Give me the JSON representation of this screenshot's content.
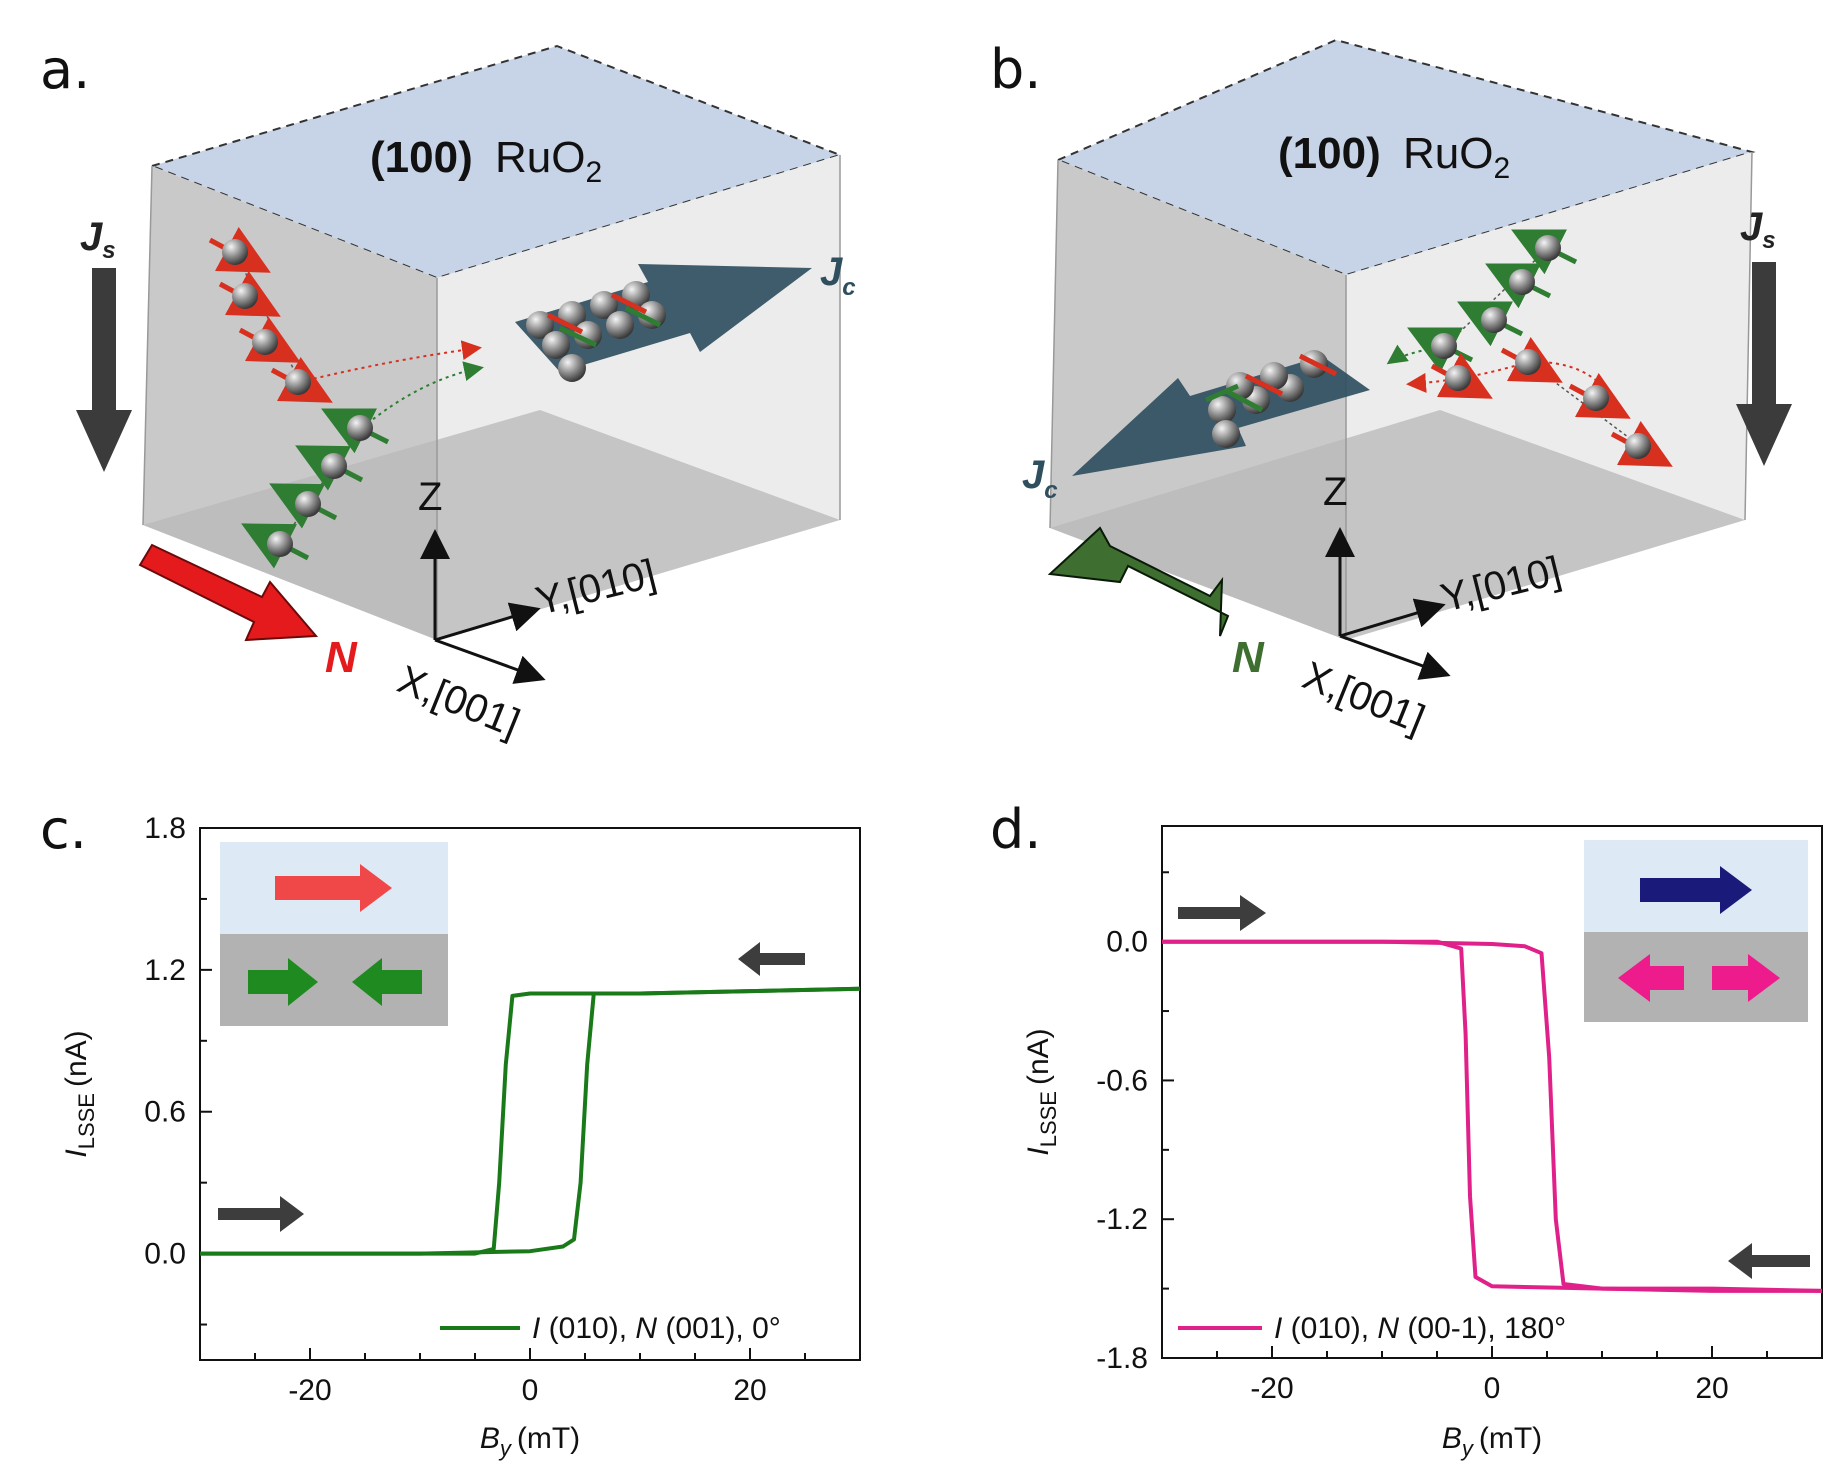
{
  "figure": {
    "panels": {
      "a": {
        "letter": "a.",
        "film_label_bold": "(100)",
        "film_label": "RuO",
        "film_sub": "2",
        "js": "J",
        "js_sub": "s",
        "jc": "J",
        "jc_sub": "c",
        "n_label": "N",
        "axis_z": "Z",
        "axis_y": "Y,[010]",
        "axis_x": "X,[001]",
        "colors": {
          "n_arrow": "#e41a1c",
          "jc_arrow": "#2f4f5f",
          "spin_red": "#d7301f",
          "spin_green": "#2e7d32"
        }
      },
      "b": {
        "letter": "b.",
        "film_label_bold": "(100)",
        "film_label": "RuO",
        "film_sub": "2",
        "js": "J",
        "js_sub": "s",
        "jc": "J",
        "jc_sub": "c",
        "n_label": "N",
        "axis_z": "Z",
        "axis_y": "Y,[010]",
        "axis_x": "X,[001]",
        "colors": {
          "n_arrow": "#3e6e30",
          "jc_arrow": "#2f4f5f",
          "spin_red": "#d7301f",
          "spin_green": "#2e7d32"
        }
      }
    }
  },
  "chart_data": [
    {
      "panel": "c.",
      "type": "line",
      "xlabel": "B",
      "xlabel_sub": "y",
      "xlabel_unit": "(mT)",
      "ylabel": "I",
      "ylabel_sub": "LSSE",
      "ylabel_unit": "(nA)",
      "xlim": [
        -30,
        30
      ],
      "ylim": [
        -0.45,
        1.8
      ],
      "xticks": [
        -20,
        0,
        20
      ],
      "xtick_labels": [
        "-20",
        "0",
        "20"
      ],
      "yticks": [
        0.0,
        0.6,
        1.2,
        1.8
      ],
      "ytick_labels": [
        "0.0",
        "0.6",
        "1.2",
        "1.8"
      ],
      "color": "#1a7a1a",
      "legend": "I (010), N (001), 0°",
      "legend_parts": [
        "I",
        " (010), ",
        "N",
        " (001), 0°"
      ],
      "series": [
        {
          "name": "sweep up",
          "x": [
            -30,
            -20,
            -10,
            0,
            3,
            4,
            4.6,
            5.2,
            5.8,
            10,
            20,
            30
          ],
          "y": [
            0.0,
            0.0,
            0.0,
            0.01,
            0.03,
            0.06,
            0.3,
            0.8,
            1.1,
            1.1,
            1.11,
            1.12
          ]
        },
        {
          "name": "sweep down",
          "x": [
            30,
            20,
            10,
            0,
            -1.6,
            -2.2,
            -2.8,
            -3.3,
            -5,
            -20,
            -30
          ],
          "y": [
            1.12,
            1.11,
            1.1,
            1.1,
            1.09,
            0.8,
            0.3,
            0.02,
            0.0,
            0.0,
            0.0
          ]
        }
      ],
      "inset": {
        "top_arrows": [
          "right"
        ],
        "bottom_arrows": [
          "right",
          "left"
        ],
        "top_color": "#f04848",
        "bottom_color": "#1f8a1f",
        "top_bg": "#dde9f4",
        "bottom_bg": "#b2b2b2"
      },
      "sweep_arrows": [
        "left",
        "right"
      ]
    },
    {
      "panel": "d.",
      "type": "line",
      "xlabel": "B",
      "xlabel_sub": "y",
      "xlabel_unit": "(mT)",
      "ylabel": "I",
      "ylabel_sub": "LSSE",
      "ylabel_unit": "(nA)",
      "xlim": [
        -30,
        30
      ],
      "ylim": [
        -1.8,
        0.5
      ],
      "xticks": [
        -20,
        0,
        20
      ],
      "xtick_labels": [
        "-20",
        "0",
        "20"
      ],
      "yticks": [
        0.0,
        -0.6,
        -1.2,
        -1.8
      ],
      "ytick_labels": [
        "0.0",
        "-0.6",
        "-1.2",
        "-1.8"
      ],
      "color": "#e0218a",
      "legend": "I (010), N (00-1), 180°",
      "legend_parts": [
        "I",
        " (010), ",
        "N",
        " (00-1), 180°"
      ],
      "series": [
        {
          "name": "sweep up",
          "x": [
            -30,
            -20,
            -10,
            0,
            3,
            4.5,
            5.2,
            5.8,
            6.5,
            10,
            20,
            30
          ],
          "y": [
            0.0,
            0.0,
            0.0,
            -0.01,
            -0.02,
            -0.05,
            -0.5,
            -1.2,
            -1.48,
            -1.5,
            -1.51,
            -1.51
          ]
        },
        {
          "name": "sweep down",
          "x": [
            30,
            20,
            10,
            0,
            -1.5,
            -2.0,
            -2.4,
            -2.8,
            -5,
            -20,
            -30
          ],
          "y": [
            -1.51,
            -1.5,
            -1.5,
            -1.49,
            -1.45,
            -1.1,
            -0.4,
            -0.03,
            0.0,
            0.0,
            0.0
          ]
        }
      ],
      "inset": {
        "top_arrows": [
          "right"
        ],
        "bottom_arrows": [
          "left",
          "right"
        ],
        "top_color": "#1a1a7a",
        "bottom_color": "#ee1b8c",
        "top_bg": "#dde9f4",
        "bottom_bg": "#b2b2b2"
      },
      "sweep_arrows": [
        "right",
        "left"
      ]
    }
  ]
}
